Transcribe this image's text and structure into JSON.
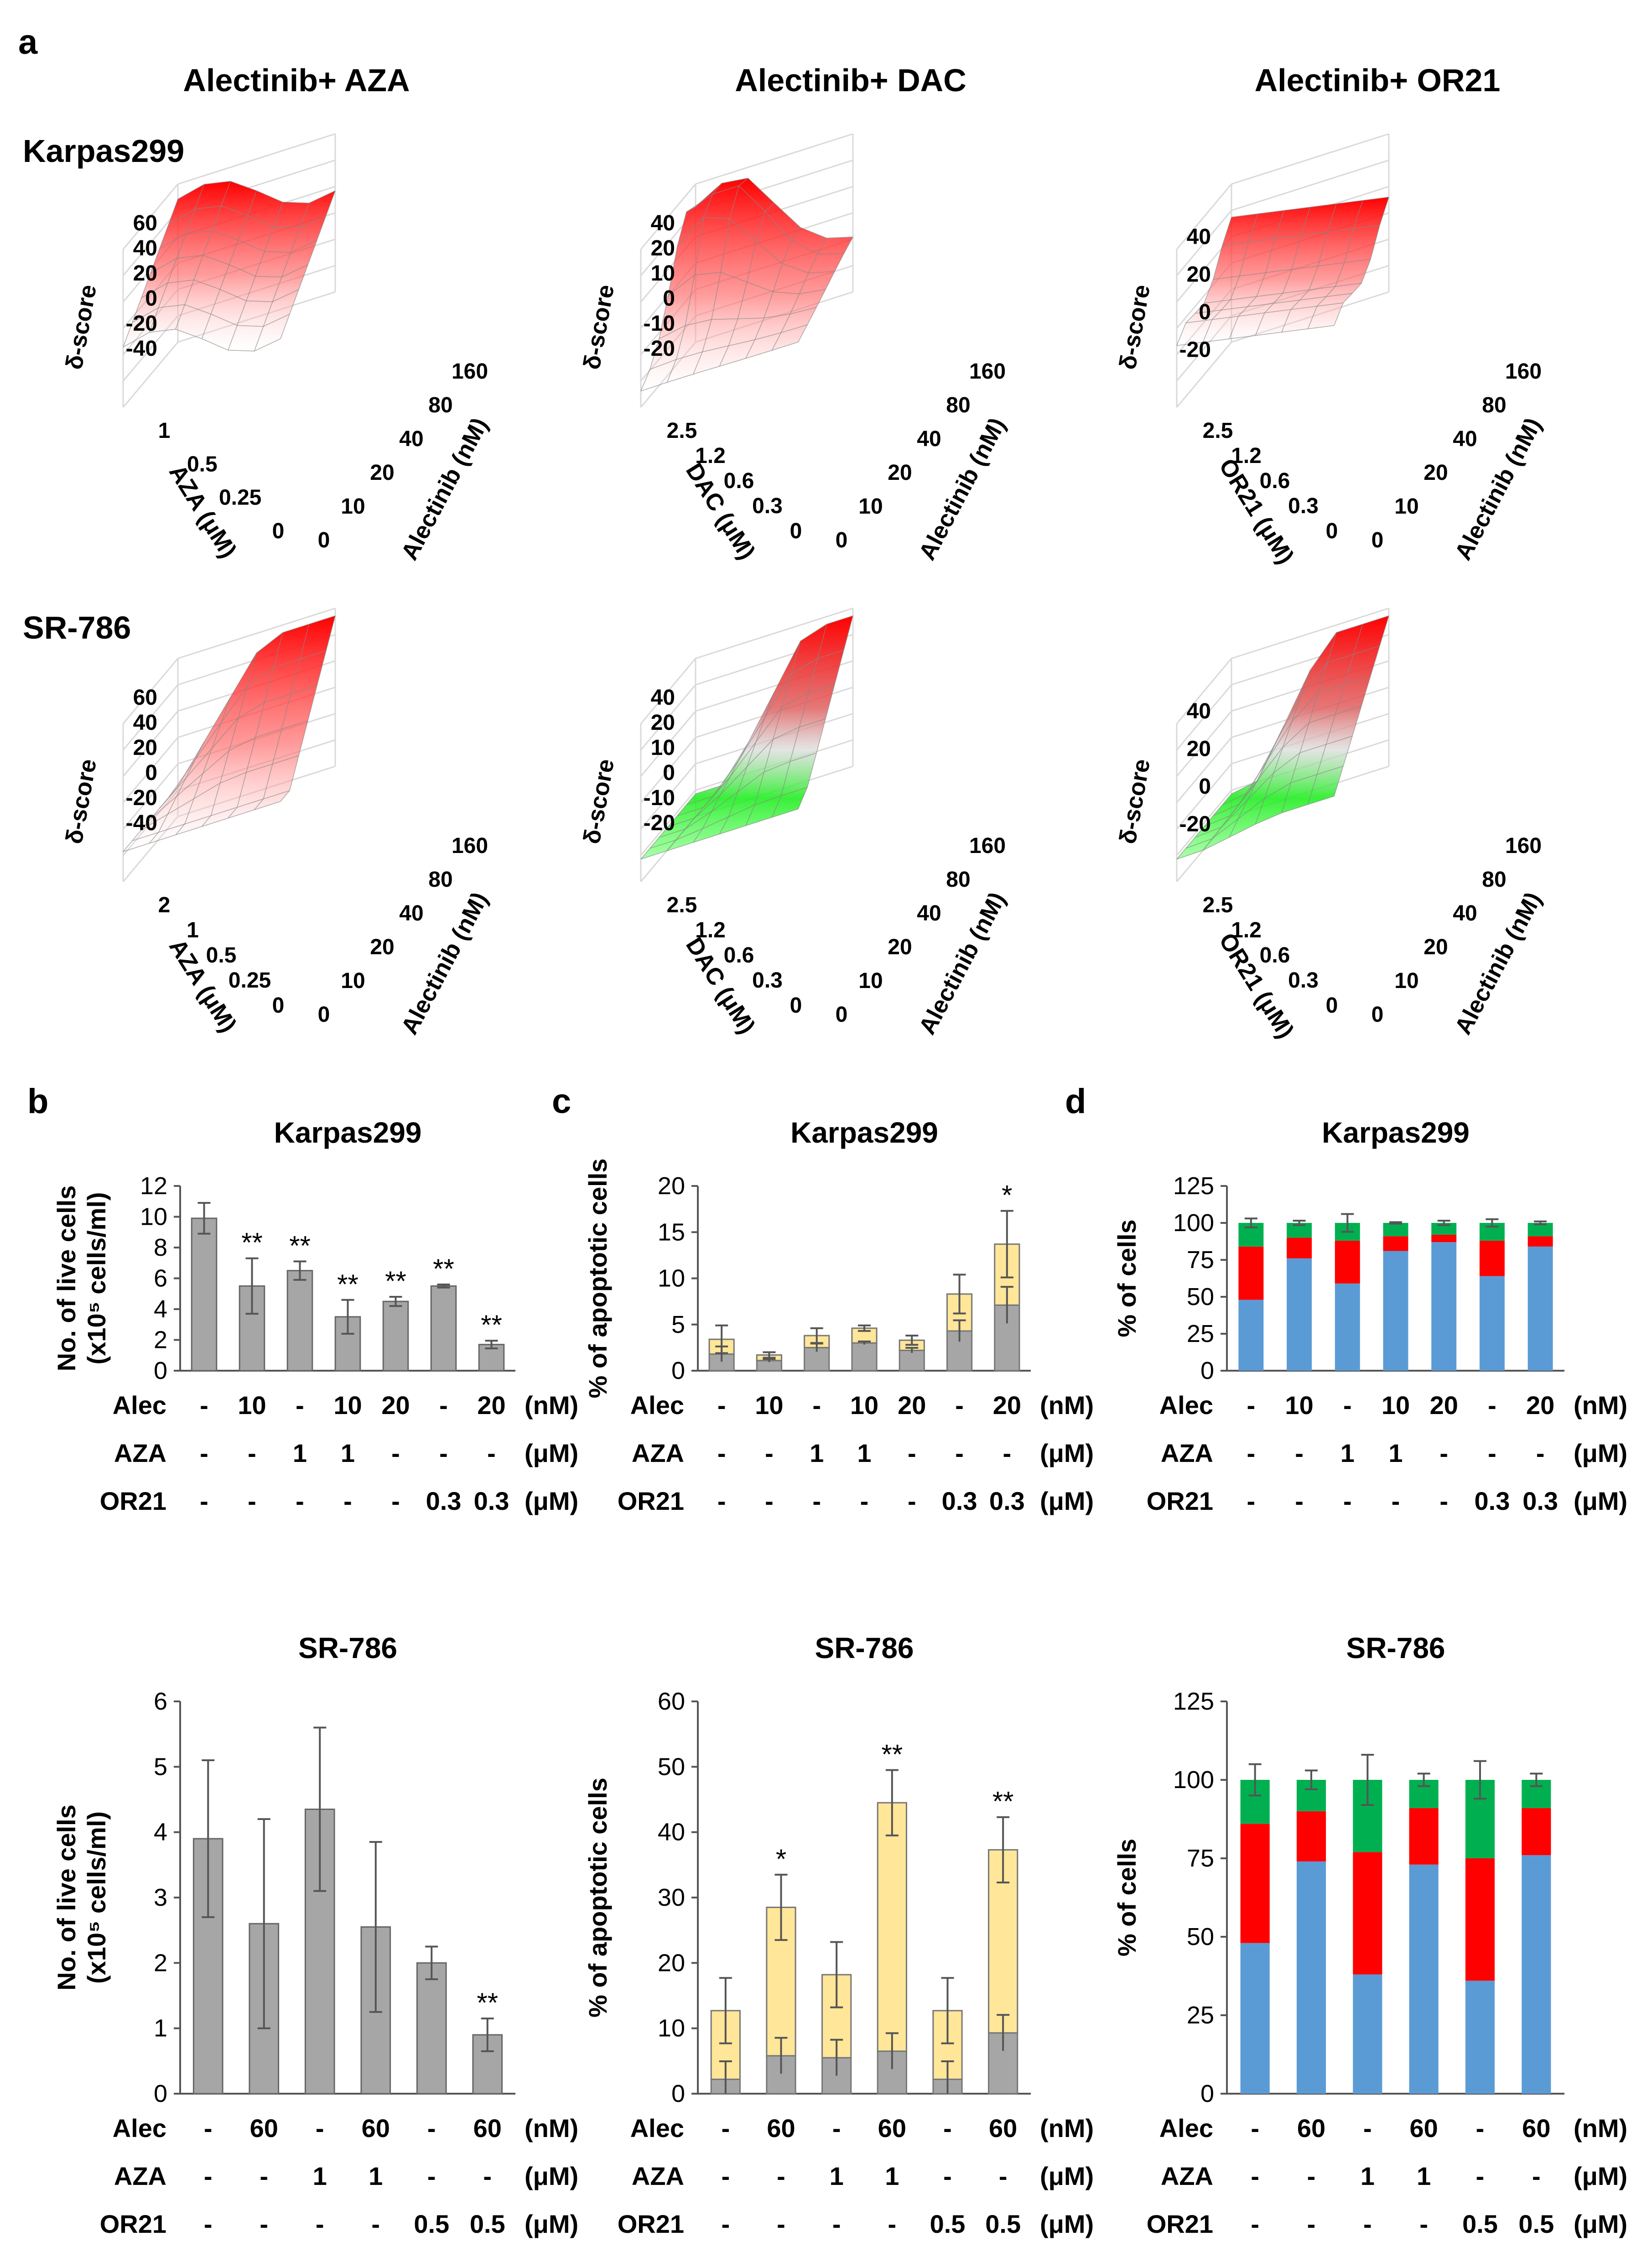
{
  "figure": {
    "panel_labels": [
      "a",
      "b",
      "c",
      "d"
    ],
    "col_titles": [
      "Alectinib+ AZA",
      "Alectinib+ DAC",
      "Alectinib+ OR21"
    ],
    "row_titles": [
      "Karpas299",
      "SR-786"
    ]
  },
  "colors": {
    "synergy": "#ff1a1a",
    "antagonism": "#33dd33",
    "gray_bar": "#a6a6a6",
    "yellow": "#ffe699",
    "blue": "#5b9bd5",
    "red": "#ff0000",
    "green": "#00b050"
  },
  "chart_data": [
    {
      "panel": "a",
      "type": "surface3d",
      "cell": "Karpas299",
      "drug": "AZA",
      "zlabel": "δ-score",
      "z_ticks": [
        "60",
        "40",
        "20",
        "0",
        "-20",
        "-40"
      ],
      "xlabel": "AZA (μM)",
      "x_ticks": [
        "1",
        "0.5",
        "0.25",
        "0"
      ],
      "ylabel": "Alectinib (nM)",
      "y_ticks": [
        "0",
        "10",
        "20",
        "40",
        "80",
        "160"
      ],
      "color": "synergy"
    },
    {
      "panel": "a",
      "type": "surface3d",
      "cell": "Karpas299",
      "drug": "DAC",
      "zlabel": "δ-score",
      "z_ticks": [
        "40",
        "20",
        "10",
        "0",
        "-10",
        "-20"
      ],
      "xlabel": "DAC (μM)",
      "x_ticks": [
        "2.5",
        "1.2",
        "0.6",
        "0.3",
        "0"
      ],
      "ylabel": "Alectinib (nM)",
      "y_ticks": [
        "0",
        "10",
        "20",
        "40",
        "80",
        "160"
      ],
      "color": "synergy"
    },
    {
      "panel": "a",
      "type": "surface3d",
      "cell": "Karpas299",
      "drug": "OR21",
      "zlabel": "δ-score",
      "z_ticks": [
        "40",
        "20",
        "0",
        "-20"
      ],
      "xlabel": "OR21 (μM)",
      "x_ticks": [
        "2.5",
        "1.2",
        "0.6",
        "0.3",
        "0"
      ],
      "ylabel": "Alectinib (nM)",
      "y_ticks": [
        "0",
        "10",
        "20",
        "40",
        "80",
        "160"
      ],
      "color": "synergy"
    },
    {
      "panel": "a",
      "type": "surface3d",
      "cell": "SR-786",
      "drug": "AZA",
      "zlabel": "δ-score",
      "z_ticks": [
        "60",
        "40",
        "20",
        "0",
        "-20",
        "-40"
      ],
      "xlabel": "AZA (μM)",
      "x_ticks": [
        "2",
        "1",
        "0.5",
        "0.25",
        "0"
      ],
      "ylabel": "Alectinib (nM)",
      "y_ticks": [
        "0",
        "10",
        "20",
        "40",
        "80",
        "160"
      ],
      "color": "synergy"
    },
    {
      "panel": "a",
      "type": "surface3d",
      "cell": "SR-786",
      "drug": "DAC",
      "zlabel": "δ-score",
      "z_ticks": [
        "40",
        "20",
        "10",
        "0",
        "-10",
        "-20"
      ],
      "xlabel": "DAC (μM)",
      "x_ticks": [
        "2.5",
        "1.2",
        "0.6",
        "0.3",
        "0"
      ],
      "ylabel": "Alectinib (nM)",
      "y_ticks": [
        "0",
        "10",
        "20",
        "40",
        "80",
        "160"
      ],
      "color": "mixed"
    },
    {
      "panel": "a",
      "type": "surface3d",
      "cell": "SR-786",
      "drug": "OR21",
      "zlabel": "δ-score",
      "z_ticks": [
        "40",
        "20",
        "0",
        "-20"
      ],
      "xlabel": "OR21 (μM)",
      "x_ticks": [
        "2.5",
        "1.2",
        "0.6",
        "0.3",
        "0"
      ],
      "ylabel": "Alectinib (nM)",
      "y_ticks": [
        "0",
        "10",
        "20",
        "40",
        "80",
        "160"
      ],
      "color": "mixed"
    },
    {
      "panel": "b",
      "type": "bar",
      "title": "Karpas299",
      "ylabel": "No. of live cells\n(x10^5 cells/ml)",
      "ylim": [
        0,
        12
      ],
      "yticks": [
        0,
        2,
        4,
        6,
        8,
        10,
        12
      ],
      "values": [
        9.9,
        5.5,
        6.5,
        3.5,
        4.5,
        5.5,
        1.7
      ],
      "errors": [
        1.0,
        1.8,
        0.6,
        1.1,
        0.3,
        0.1,
        0.25
      ],
      "sig": [
        "",
        "**",
        "**",
        "**",
        "**",
        "**",
        "**"
      ],
      "conditions": {
        "rows": [
          {
            "label": "Alec",
            "unit": "(nM)",
            "values": [
              "-",
              "10",
              "-",
              "10",
              "20",
              "-",
              "20"
            ]
          },
          {
            "label": "AZA",
            "unit": "(μM)",
            "values": [
              "-",
              "-",
              "1",
              "1",
              "-",
              "-",
              "-"
            ]
          },
          {
            "label": "OR21",
            "unit": "(μM)",
            "values": [
              "-",
              "-",
              "-",
              "-",
              "-",
              "0.3",
              "0.3"
            ]
          }
        ]
      }
    },
    {
      "panel": "c",
      "type": "stacked_bar",
      "title": "Karpas299",
      "ylabel": "% of apoptotic cells",
      "ylim": [
        0,
        20
      ],
      "yticks": [
        0,
        5,
        10,
        15,
        20
      ],
      "series": [
        {
          "name": "gray",
          "color": "gray_bar",
          "values": [
            1.8,
            1.1,
            2.5,
            3.0,
            2.2,
            4.3,
            7.1
          ]
        },
        {
          "name": "yellow",
          "color": "yellow",
          "values": [
            1.6,
            0.6,
            1.3,
            1.6,
            1.1,
            4.0,
            6.6
          ]
        }
      ],
      "errors": [
        1.5,
        0.3,
        0.8,
        0.3,
        0.5,
        2.1,
        3.6
      ],
      "sig": [
        "",
        "",
        "",
        "",
        "",
        "",
        "*"
      ],
      "conditions": {
        "rows": [
          {
            "label": "Alec",
            "unit": "(nM)",
            "values": [
              "-",
              "10",
              "-",
              "10",
              "20",
              "-",
              "20"
            ]
          },
          {
            "label": "AZA",
            "unit": "(μM)",
            "values": [
              "-",
              "-",
              "1",
              "1",
              "-",
              "-",
              "-"
            ]
          },
          {
            "label": "OR21",
            "unit": "(μM)",
            "values": [
              "-",
              "-",
              "-",
              "-",
              "-",
              "0.3",
              "0.3"
            ]
          }
        ]
      }
    },
    {
      "panel": "d",
      "type": "stacked_bar",
      "title": "Karpas299",
      "ylabel": "% of cells",
      "ylim": [
        0,
        125
      ],
      "yticks": [
        0,
        25,
        50,
        75,
        100,
        125
      ],
      "series": [
        {
          "name": "blue",
          "color": "blue",
          "values": [
            48,
            76,
            59,
            81,
            87,
            64,
            84
          ]
        },
        {
          "name": "red",
          "color": "red",
          "values": [
            36,
            14,
            29,
            10,
            5,
            24,
            7
          ]
        },
        {
          "name": "green",
          "color": "green",
          "values": [
            16,
            10,
            12,
            9,
            8,
            12,
            9
          ]
        }
      ],
      "errors": [
        3,
        1.5,
        6,
        0.5,
        1.5,
        2.5,
        1
      ],
      "conditions": {
        "rows": [
          {
            "label": "Alec",
            "unit": "(nM)",
            "values": [
              "-",
              "10",
              "-",
              "10",
              "20",
              "-",
              "20"
            ]
          },
          {
            "label": "AZA",
            "unit": "(μM)",
            "values": [
              "-",
              "-",
              "1",
              "1",
              "-",
              "-",
              "-"
            ]
          },
          {
            "label": "OR21",
            "unit": "(μM)",
            "values": [
              "-",
              "-",
              "-",
              "-",
              "-",
              "0.3",
              "0.3"
            ]
          }
        ]
      }
    },
    {
      "panel": "b",
      "type": "bar",
      "title": "SR-786",
      "ylabel": "No. of live cells\n(x10^5 cells/ml)",
      "ylim": [
        0,
        6
      ],
      "yticks": [
        0,
        1,
        2,
        3,
        4,
        5,
        6
      ],
      "values": [
        3.9,
        2.6,
        4.35,
        2.55,
        2.0,
        0.9
      ],
      "errors": [
        1.2,
        1.6,
        1.25,
        1.3,
        0.25,
        0.25
      ],
      "sig": [
        "",
        "",
        "",
        "",
        "",
        "**"
      ],
      "conditions": {
        "rows": [
          {
            "label": "Alec",
            "unit": "(nM)",
            "values": [
              "-",
              "60",
              "-",
              "60",
              "-",
              "60"
            ]
          },
          {
            "label": "AZA",
            "unit": "(μM)",
            "values": [
              "-",
              "-",
              "1",
              "1",
              "-",
              "-"
            ]
          },
          {
            "label": "OR21",
            "unit": "(μM)",
            "values": [
              "-",
              "-",
              "-",
              "-",
              "0.5",
              "0.5"
            ]
          }
        ]
      }
    },
    {
      "panel": "c",
      "type": "stacked_bar",
      "title": "SR-786",
      "ylabel": "% of apoptotic cells",
      "ylim": [
        0,
        60
      ],
      "yticks": [
        0,
        10,
        20,
        30,
        40,
        50,
        60
      ],
      "series": [
        {
          "name": "gray",
          "color": "gray_bar",
          "values": [
            2.2,
            5.8,
            5.5,
            6.5,
            2.2,
            9.3
          ]
        },
        {
          "name": "yellow",
          "color": "yellow",
          "values": [
            10.5,
            22.7,
            12.7,
            38.0,
            10.5,
            28.0
          ]
        }
      ],
      "errors": [
        5,
        5,
        5,
        5,
        5,
        5
      ],
      "sig": [
        "",
        "*",
        "",
        "**",
        "",
        "**"
      ],
      "conditions": {
        "rows": [
          {
            "label": "Alec",
            "unit": "(nM)",
            "values": [
              "-",
              "60",
              "-",
              "60",
              "-",
              "60"
            ]
          },
          {
            "label": "AZA",
            "unit": "(μM)",
            "values": [
              "-",
              "-",
              "1",
              "1",
              "-",
              "-"
            ]
          },
          {
            "label": "OR21",
            "unit": "(μM)",
            "values": [
              "-",
              "-",
              "-",
              "-",
              "0.5",
              "0.5"
            ]
          }
        ]
      }
    },
    {
      "panel": "d",
      "type": "stacked_bar",
      "title": "SR-786",
      "ylabel": "% of cells",
      "ylim": [
        0,
        125
      ],
      "yticks": [
        0,
        25,
        50,
        75,
        100,
        125
      ],
      "series": [
        {
          "name": "blue",
          "color": "blue",
          "values": [
            48,
            74,
            38,
            73,
            36,
            76
          ]
        },
        {
          "name": "red",
          "color": "red",
          "values": [
            38,
            16,
            39,
            18,
            39,
            15
          ]
        },
        {
          "name": "green",
          "color": "green",
          "values": [
            14,
            10,
            23,
            9,
            25,
            9
          ]
        }
      ],
      "errors": [
        5,
        3,
        8,
        2,
        6,
        2
      ],
      "conditions": {
        "rows": [
          {
            "label": "Alec",
            "unit": "(nM)",
            "values": [
              "-",
              "60",
              "-",
              "60",
              "-",
              "60"
            ]
          },
          {
            "label": "AZA",
            "unit": "(μM)",
            "values": [
              "-",
              "-",
              "1",
              "1",
              "-",
              "-"
            ]
          },
          {
            "label": "OR21",
            "unit": "(μM)",
            "values": [
              "-",
              "-",
              "-",
              "-",
              "0.5",
              "0.5"
            ]
          }
        ]
      }
    }
  ]
}
